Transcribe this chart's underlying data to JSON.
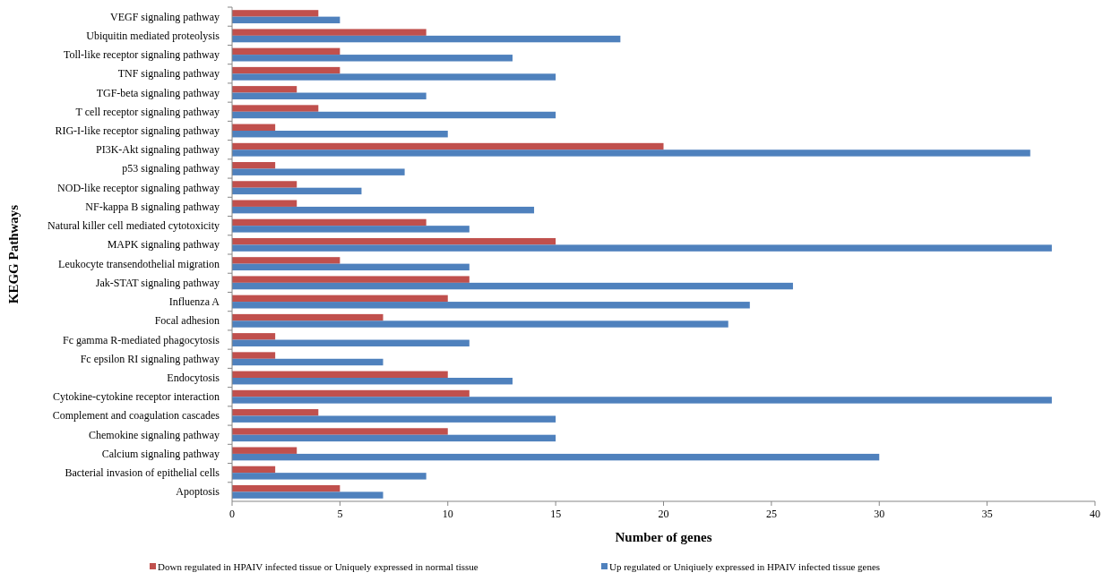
{
  "chart_data": {
    "type": "bar",
    "orientation": "horizontal",
    "xlabel": "Number of genes",
    "ylabel": "KEGG Pathways",
    "categories": [
      "VEGF signaling pathway",
      "Ubiquitin mediated proteolysis",
      "Toll-like receptor signaling pathway",
      "TNF signaling pathway",
      "TGF-beta signaling pathway",
      "T cell receptor signaling pathway",
      "RIG-I-like receptor signaling pathway",
      "PI3K-Akt signaling pathway",
      "p53 signaling pathway",
      "NOD-like receptor signaling pathway",
      "NF-kappa B signaling pathway",
      "Natural killer cell mediated cytotoxicity",
      "MAPK signaling pathway",
      "Leukocyte transendothelial migration",
      "Jak-STAT signaling pathway",
      "Influenza A",
      "Focal adhesion",
      "Fc gamma R-mediated phagocytosis",
      "Fc epsilon RI signaling pathway",
      "Endocytosis",
      "Cytokine-cytokine receptor interaction",
      "Complement and coagulation cascades",
      "Chemokine signaling pathway",
      "Calcium signaling pathway",
      "Bacterial invasion of epithelial cells",
      "Apoptosis"
    ],
    "series": [
      {
        "name": "Down regulated in HPAIV infected tissue or Uniquely expressed in normal tissue",
        "color": "#c0504d",
        "values": [
          4,
          9,
          5,
          5,
          3,
          4,
          2,
          20,
          2,
          3,
          3,
          9,
          15,
          5,
          11,
          10,
          7,
          2,
          2,
          10,
          11,
          4,
          10,
          3,
          2,
          5
        ]
      },
      {
        "name": "Up regulated or Uniqiuely expressed in HPAIV infected tissue  genes",
        "color": "#4f81bd",
        "values": [
          5,
          18,
          13,
          15,
          9,
          15,
          10,
          37,
          8,
          6,
          14,
          11,
          38,
          11,
          26,
          24,
          23,
          11,
          7,
          13,
          38,
          15,
          15,
          30,
          9,
          7
        ]
      }
    ],
    "xlim": [
      0,
      40
    ],
    "xticks": [
      0,
      5,
      10,
      15,
      20,
      25,
      30,
      35,
      40
    ],
    "grid": false,
    "legend": "bottom"
  }
}
